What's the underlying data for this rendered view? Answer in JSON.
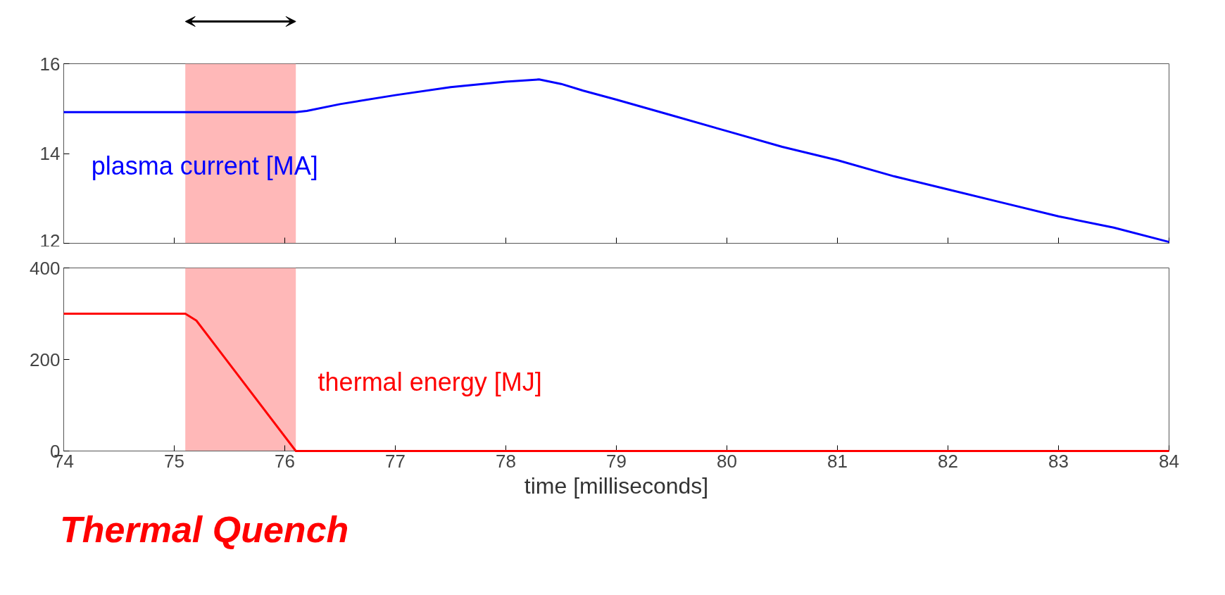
{
  "chart_data": [
    {
      "type": "line",
      "x": [
        74,
        76.1,
        76.2,
        76.5,
        77,
        77.5,
        78,
        78.3,
        78.5,
        78.7,
        79,
        79.5,
        80,
        80.5,
        81,
        81.5,
        82,
        82.5,
        83,
        83.5,
        84
      ],
      "series": [
        {
          "name": "plasma current [MA]",
          "color": "#0000ff",
          "values": [
            14.92,
            14.92,
            14.95,
            15.1,
            15.3,
            15.48,
            15.6,
            15.65,
            15.55,
            15.4,
            15.2,
            14.85,
            14.5,
            14.15,
            13.85,
            13.5,
            13.2,
            12.9,
            12.6,
            12.35,
            12.03
          ]
        }
      ],
      "xlim": [
        74,
        84
      ],
      "xticks": [
        74,
        75,
        76,
        77,
        78,
        79,
        80,
        81,
        82,
        83,
        84
      ],
      "ylim": [
        12,
        16
      ],
      "yticks": [
        12,
        14,
        16
      ],
      "bands": [
        {
          "axis": "x",
          "from": 75.1,
          "to": 76.1,
          "color": "#ffb8b8"
        }
      ],
      "tick_labels": "y"
    },
    {
      "type": "line",
      "x": [
        74,
        75.1,
        75.2,
        76.1,
        84
      ],
      "series": [
        {
          "name": "thermal energy [MJ]",
          "color": "#ff0000",
          "values": [
            300,
            300,
            285,
            0,
            0
          ]
        }
      ],
      "xlim": [
        74,
        84
      ],
      "xticks": [
        74,
        75,
        76,
        77,
        78,
        79,
        80,
        81,
        82,
        83,
        84
      ],
      "ylim": [
        0,
        400
      ],
      "yticks": [
        0,
        200,
        400
      ],
      "xlabel": "time [milliseconds]",
      "bands": [
        {
          "axis": "x",
          "from": 75.1,
          "to": 76.1,
          "color": "#ffb8b8"
        }
      ],
      "annotations": [
        "Thermal Quench"
      ]
    }
  ]
}
